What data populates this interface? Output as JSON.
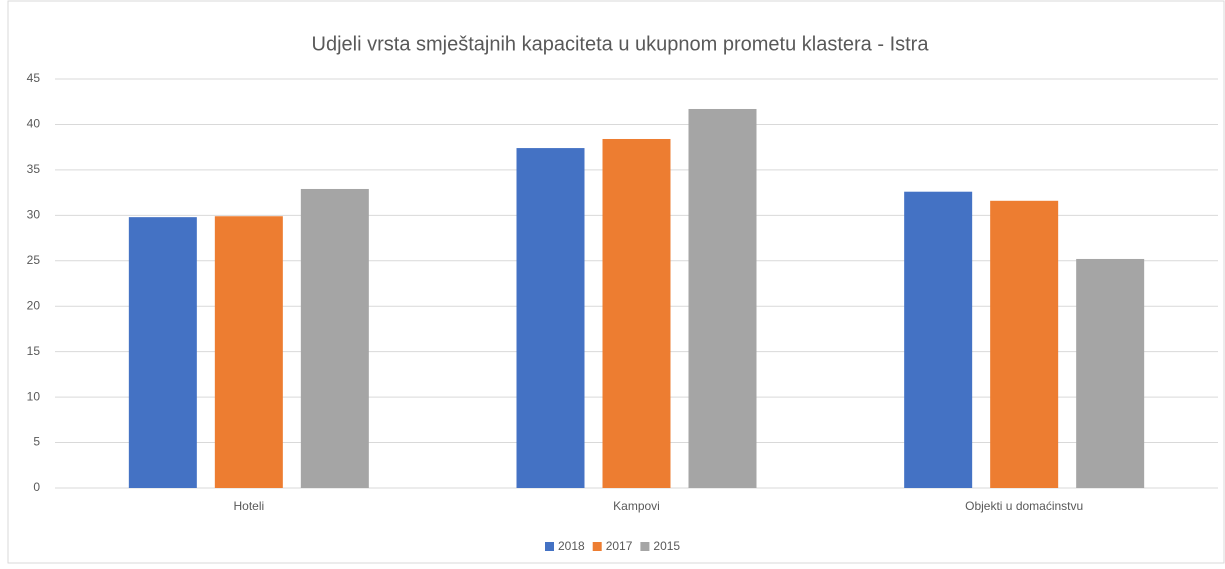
{
  "chart_data": {
    "type": "bar",
    "title": "Udjeli vrsta smještajnih kapaciteta u ukupnom prometu klastera - Istra",
    "categories": [
      "Hoteli",
      "Kampovi",
      "Objekti u domaćinstvu"
    ],
    "series": [
      {
        "name": "2018",
        "color": "#4472c4",
        "values": [
          29.8,
          37.4,
          32.6
        ]
      },
      {
        "name": "2017",
        "color": "#ed7d31",
        "values": [
          29.9,
          38.4,
          31.6
        ]
      },
      {
        "name": "2015",
        "color": "#a5a5a5",
        "values": [
          32.9,
          41.7,
          25.2
        ]
      }
    ],
    "ylim": [
      0,
      45
    ],
    "yticks": [
      0,
      5,
      10,
      15,
      20,
      25,
      30,
      35,
      40,
      45
    ],
    "grid": true,
    "legend": "bottom"
  }
}
